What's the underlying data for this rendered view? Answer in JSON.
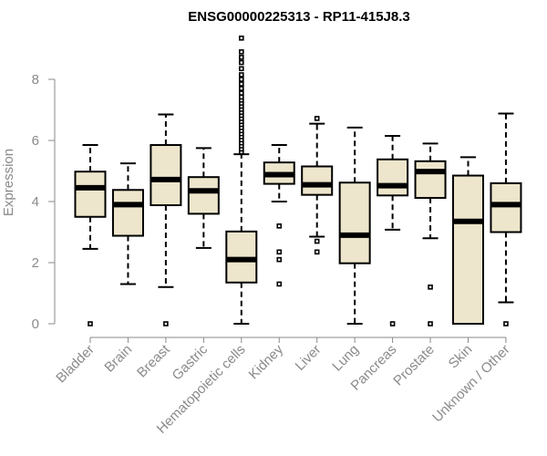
{
  "chart_data": {
    "type": "boxplot",
    "title": "ENSG00000225313 - RP11-415J8.3",
    "xlabel": "",
    "ylabel": "Expression",
    "ylim": [
      0,
      9.4
    ],
    "yticks": [
      0,
      2,
      4,
      6,
      8
    ],
    "grid": false,
    "colors": {
      "box_fill": "#ede6cc",
      "stroke": "#000000",
      "axis": "#8a8a8a"
    },
    "categories": [
      "Bladder",
      "Brain",
      "Breast",
      "Gastric",
      "Hematopoietic cells",
      "Kidney",
      "Liver",
      "Lung",
      "Pancreas",
      "Prostate",
      "Skin",
      "Unknown / Other"
    ],
    "boxes": [
      {
        "category": "Bladder",
        "whisker_low": 2.45,
        "q1": 3.5,
        "median": 4.45,
        "q3": 4.98,
        "whisker_high": 5.85,
        "outliers": [
          0
        ]
      },
      {
        "category": "Brain",
        "whisker_low": 1.3,
        "q1": 2.88,
        "median": 3.9,
        "q3": 4.38,
        "whisker_high": 5.25,
        "outliers": []
      },
      {
        "category": "Breast",
        "whisker_low": 1.2,
        "q1": 3.88,
        "median": 4.72,
        "q3": 5.85,
        "whisker_high": 6.85,
        "outliers": [
          0
        ]
      },
      {
        "category": "Gastric",
        "whisker_low": 2.48,
        "q1": 3.6,
        "median": 4.35,
        "q3": 4.8,
        "whisker_high": 5.75,
        "outliers": []
      },
      {
        "category": "Hematopoietic cells",
        "whisker_low": 0,
        "q1": 1.35,
        "median": 2.1,
        "q3": 3.02,
        "whisker_high": 5.55,
        "outliers": [
          5.62,
          5.72,
          5.82,
          5.92,
          6.02,
          6.12,
          6.22,
          6.32,
          6.42,
          6.52,
          6.62,
          6.72,
          6.82,
          6.92,
          7.02,
          7.12,
          7.22,
          7.32,
          7.42,
          7.55,
          7.7,
          7.85,
          8.0,
          8.15,
          8.35,
          8.55,
          8.72,
          8.9,
          9.35
        ]
      },
      {
        "category": "Kidney",
        "whisker_low": 4.0,
        "q1": 4.58,
        "median": 4.88,
        "q3": 5.28,
        "whisker_high": 5.85,
        "outliers": [
          3.2,
          2.35,
          2.1,
          1.3
        ]
      },
      {
        "category": "Liver",
        "whisker_low": 2.85,
        "q1": 4.22,
        "median": 4.55,
        "q3": 5.15,
        "whisker_high": 6.55,
        "outliers": [
          6.72,
          2.7,
          2.35
        ]
      },
      {
        "category": "Lung",
        "whisker_low": 0,
        "q1": 1.98,
        "median": 2.9,
        "q3": 4.62,
        "whisker_high": 6.42,
        "outliers": []
      },
      {
        "category": "Pancreas",
        "whisker_low": 3.08,
        "q1": 4.2,
        "median": 4.52,
        "q3": 5.38,
        "whisker_high": 6.15,
        "outliers": [
          0
        ]
      },
      {
        "category": "Prostate",
        "whisker_low": 2.8,
        "q1": 4.12,
        "median": 4.98,
        "q3": 5.32,
        "whisker_high": 5.9,
        "outliers": [
          1.2,
          0
        ]
      },
      {
        "category": "Skin",
        "whisker_low": 0,
        "q1": 0,
        "median": 3.35,
        "q3": 4.85,
        "whisker_high": 5.45,
        "outliers": []
      },
      {
        "category": "Unknown / Other",
        "whisker_low": 0.7,
        "q1": 3.0,
        "median": 3.9,
        "q3": 4.6,
        "whisker_high": 6.88,
        "outliers": [
          0
        ]
      }
    ]
  }
}
